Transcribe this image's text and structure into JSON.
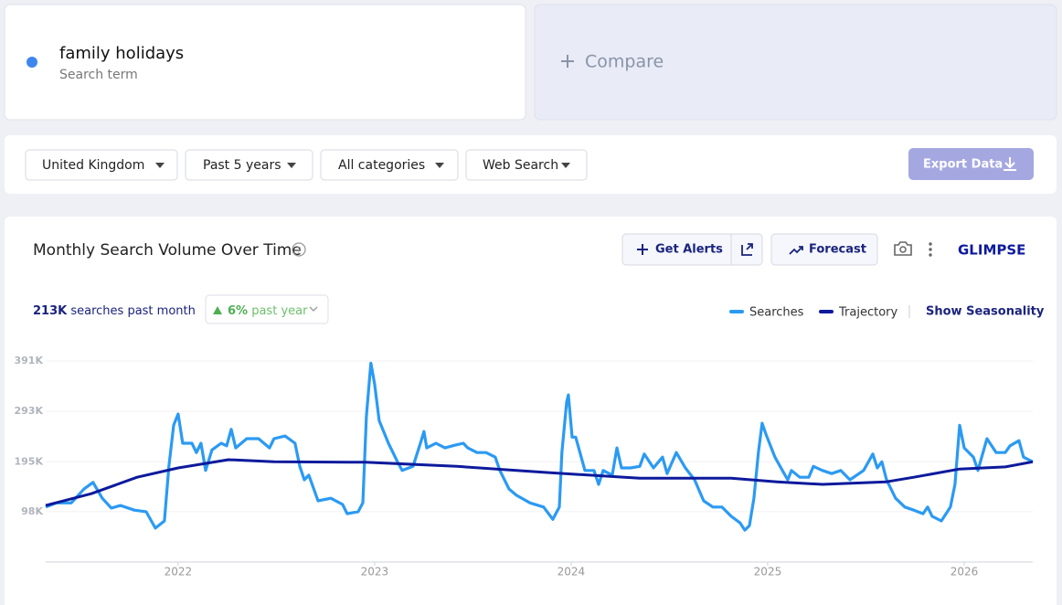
{
  "search_card": {
    "term": "family holidays",
    "subtitle": "Search term"
  },
  "compare": "Compare",
  "filters": [
    "United Kingdom",
    "Past 5 years",
    "All categories",
    "Web Search"
  ],
  "export_button": "Export Data",
  "toolbar": {
    "get_alerts": "Get Alerts",
    "forecast": "Forecast",
    "logo": "GLIMPSE"
  },
  "stats": {
    "searches_value": "213K",
    "searches_text": "searches past month",
    "change_value": "6%",
    "change_text": "past year"
  },
  "show_seasonality": "Show Seasonality",
  "chart_data": {
    "type": "line",
    "title": "Monthly Search Volume Over Time",
    "xlim": [
      2021.326,
      2026.349
    ],
    "xticks": [
      2022,
      2023,
      2024,
      2025,
      2026
    ],
    "ylim": [
      0,
      391
    ],
    "yticks": [
      {
        "value": 98,
        "label": "98K"
      },
      {
        "value": 195,
        "label": "195K"
      },
      {
        "value": 293,
        "label": "293K"
      },
      {
        "value": 391,
        "label": "391K"
      }
    ],
    "grid": true,
    "series": [
      {
        "name": "Searches",
        "color": "#2b9af3",
        "x": [
          2021.326,
          2021.381,
          2021.456,
          2021.521,
          2021.567,
          2021.614,
          2021.66,
          2021.707,
          2021.777,
          2021.837,
          2021.884,
          2021.93,
          2021.953,
          2021.977,
          2022.0,
          2022.023,
          2022.07,
          2022.093,
          2022.116,
          2022.14,
          2022.172,
          2022.219,
          2022.247,
          2022.27,
          2022.293,
          2022.349,
          2022.409,
          2022.465,
          2022.488,
          2022.544,
          2022.595,
          2022.619,
          2022.642,
          2022.665,
          2022.712,
          2022.777,
          2022.837,
          2022.86,
          2022.916,
          2022.94,
          2022.958,
          2022.981,
          2023.0,
          2023.023,
          2023.07,
          2023.116,
          2023.14,
          2023.195,
          2023.233,
          2023.251,
          2023.265,
          2023.312,
          2023.358,
          2023.405,
          2023.451,
          2023.474,
          2023.521,
          2023.567,
          2023.614,
          2023.637,
          2023.684,
          2023.721,
          2023.791,
          2023.86,
          2023.907,
          2023.94,
          2023.953,
          2023.977,
          2023.986,
          2024.005,
          2024.023,
          2024.07,
          2024.116,
          2024.14,
          2024.163,
          2024.209,
          2024.233,
          2024.256,
          2024.302,
          2024.349,
          2024.372,
          2024.419,
          2024.465,
          2024.488,
          2024.535,
          2024.581,
          2024.628,
          2024.674,
          2024.721,
          2024.767,
          2024.814,
          2024.86,
          2024.884,
          2024.907,
          2024.93,
          2024.953,
          2024.972,
          2024.991,
          2025.037,
          2025.084,
          2025.102,
          2025.121,
          2025.163,
          2025.209,
          2025.233,
          2025.279,
          2025.326,
          2025.372,
          2025.419,
          2025.488,
          2025.535,
          2025.558,
          2025.581,
          2025.605,
          2025.651,
          2025.698,
          2025.744,
          2025.791,
          2025.814,
          2025.837,
          2025.884,
          2025.93,
          2025.953,
          2025.977,
          2026.0,
          2026.047,
          2026.07,
          2026.116,
          2026.163,
          2026.209,
          2026.233,
          2026.279,
          2026.302,
          2026.349
        ],
        "values": [
          107,
          115,
          115,
          142,
          155,
          124,
          105,
          110,
          101,
          98,
          66,
          80,
          186,
          266,
          288,
          231,
          231,
          213,
          231,
          178,
          218,
          231,
          226,
          258,
          222,
          240,
          240,
          222,
          240,
          245,
          231,
          186,
          160,
          169,
          119,
          124,
          112,
          94,
          98,
          115,
          284,
          387,
          346,
          275,
          231,
          195,
          178,
          186,
          231,
          254,
          222,
          231,
          222,
          227,
          231,
          222,
          213,
          213,
          204,
          178,
          142,
          130,
          115,
          107,
          83,
          107,
          213,
          311,
          325,
          243,
          243,
          178,
          178,
          151,
          178,
          169,
          222,
          183,
          183,
          186,
          210,
          183,
          204,
          172,
          213,
          183,
          160,
          119,
          107,
          107,
          89,
          76,
          62,
          71,
          124,
          213,
          270,
          249,
          204,
          172,
          160,
          178,
          165,
          165,
          186,
          178,
          172,
          178,
          160,
          178,
          210,
          183,
          195,
          160,
          124,
          107,
          101,
          94,
          107,
          89,
          80,
          107,
          151,
          266,
          222,
          204,
          178,
          240,
          213,
          213,
          226,
          236,
          204,
          195
        ]
      },
      {
        "name": "Trajectory",
        "color": "#0d1a9c",
        "x": [
          2021.326,
          2021.558,
          2021.791,
          2022.0,
          2022.256,
          2022.488,
          2022.953,
          2023.419,
          2023.884,
          2024.349,
          2024.814,
          2025.047,
          2025.279,
          2025.605,
          2025.744,
          2025.977,
          2026.209,
          2026.349
        ],
        "values": [
          110,
          133,
          165,
          183,
          199,
          195,
          194,
          186,
          174,
          163,
          163,
          156,
          151,
          156,
          165,
          181,
          185,
          195
        ]
      }
    ]
  }
}
